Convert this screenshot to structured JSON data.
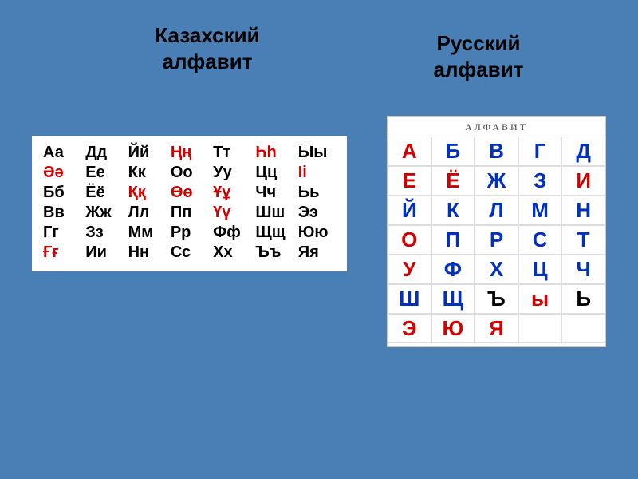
{
  "headings": {
    "kazakh": "Казахский\nалфавит",
    "russian": "Русский\nалфавит"
  },
  "kazakh": {
    "cols": 7,
    "rows": 6,
    "cell_fontsize_pt": 15,
    "cell_fontweight": "bold",
    "text_color_black": "#000000",
    "text_color_red": "#d00000",
    "background": "#ffffff",
    "cells": [
      {
        "t": "Аа",
        "c": "black"
      },
      {
        "t": "Дд",
        "c": "black"
      },
      {
        "t": "Йй",
        "c": "black"
      },
      {
        "t": "Ңң",
        "c": "red"
      },
      {
        "t": "Тт",
        "c": "black"
      },
      {
        "t": "Һһ",
        "c": "red"
      },
      {
        "t": "Ыы",
        "c": "black"
      },
      {
        "t": "Әә",
        "c": "red"
      },
      {
        "t": "Ее",
        "c": "black"
      },
      {
        "t": "Кк",
        "c": "black"
      },
      {
        "t": "Оо",
        "c": "black"
      },
      {
        "t": "Уу",
        "c": "black"
      },
      {
        "t": "Цц",
        "c": "black"
      },
      {
        "t": "Іі",
        "c": "red"
      },
      {
        "t": "Бб",
        "c": "black"
      },
      {
        "t": "Ёё",
        "c": "black"
      },
      {
        "t": "Ққ",
        "c": "red"
      },
      {
        "t": "Өө",
        "c": "red"
      },
      {
        "t": "Ұұ",
        "c": "red"
      },
      {
        "t": "Чч",
        "c": "black"
      },
      {
        "t": "Ьь",
        "c": "black"
      },
      {
        "t": "Вв",
        "c": "black"
      },
      {
        "t": "Жж",
        "c": "black"
      },
      {
        "t": "Лл",
        "c": "black"
      },
      {
        "t": "Пп",
        "c": "black"
      },
      {
        "t": "Үү",
        "c": "red"
      },
      {
        "t": "Шш",
        "c": "black"
      },
      {
        "t": "Ээ",
        "c": "black"
      },
      {
        "t": "Гг",
        "c": "black"
      },
      {
        "t": "Зз",
        "c": "black"
      },
      {
        "t": "Мм",
        "c": "black"
      },
      {
        "t": "Рр",
        "c": "black"
      },
      {
        "t": "Фф",
        "c": "black"
      },
      {
        "t": "Щщ",
        "c": "black"
      },
      {
        "t": "Юю",
        "c": "black"
      },
      {
        "t": "Ғғ",
        "c": "red"
      },
      {
        "t": "Ии",
        "c": "black"
      },
      {
        "t": "Нн",
        "c": "black"
      },
      {
        "t": "Сс",
        "c": "black"
      },
      {
        "t": "Хх",
        "c": "black"
      },
      {
        "t": "Ъъ",
        "c": "black"
      },
      {
        "t": "Яя",
        "c": "black"
      }
    ]
  },
  "russian": {
    "title": "АЛФАВИТ",
    "cols": 5,
    "rows": 7,
    "cell_fontsize_pt": 20,
    "cell_fontweight": "bold",
    "colors": {
      "red": "#d20000",
      "blue": "#0030c0",
      "black": "#000000"
    },
    "grid_border": "#dddddd",
    "background": "#ffffff",
    "cells": [
      {
        "t": "А",
        "c": "red"
      },
      {
        "t": "Б",
        "c": "blue"
      },
      {
        "t": "В",
        "c": "blue"
      },
      {
        "t": "Г",
        "c": "blue"
      },
      {
        "t": "Д",
        "c": "blue"
      },
      {
        "t": "Е",
        "c": "red"
      },
      {
        "t": "Ё",
        "c": "red"
      },
      {
        "t": "Ж",
        "c": "blue"
      },
      {
        "t": "З",
        "c": "blue"
      },
      {
        "t": "И",
        "c": "red"
      },
      {
        "t": "Й",
        "c": "blue"
      },
      {
        "t": "К",
        "c": "blue"
      },
      {
        "t": "Л",
        "c": "blue"
      },
      {
        "t": "М",
        "c": "blue"
      },
      {
        "t": "Н",
        "c": "blue"
      },
      {
        "t": "О",
        "c": "red"
      },
      {
        "t": "П",
        "c": "blue"
      },
      {
        "t": "Р",
        "c": "blue"
      },
      {
        "t": "С",
        "c": "blue"
      },
      {
        "t": "Т",
        "c": "blue"
      },
      {
        "t": "У",
        "c": "red"
      },
      {
        "t": "Ф",
        "c": "blue"
      },
      {
        "t": "Х",
        "c": "blue"
      },
      {
        "t": "Ц",
        "c": "blue"
      },
      {
        "t": "Ч",
        "c": "blue"
      },
      {
        "t": "Ш",
        "c": "blue"
      },
      {
        "t": "Щ",
        "c": "blue"
      },
      {
        "t": "Ъ",
        "c": "black"
      },
      {
        "t": "ы",
        "c": "lred"
      },
      {
        "t": "Ь",
        "c": "black"
      },
      {
        "t": "Э",
        "c": "red"
      },
      {
        "t": "Ю",
        "c": "red"
      },
      {
        "t": "Я",
        "c": "red"
      },
      {
        "t": "",
        "c": "black"
      },
      {
        "t": "",
        "c": "black"
      }
    ]
  },
  "page_background": "#4a7fb5"
}
